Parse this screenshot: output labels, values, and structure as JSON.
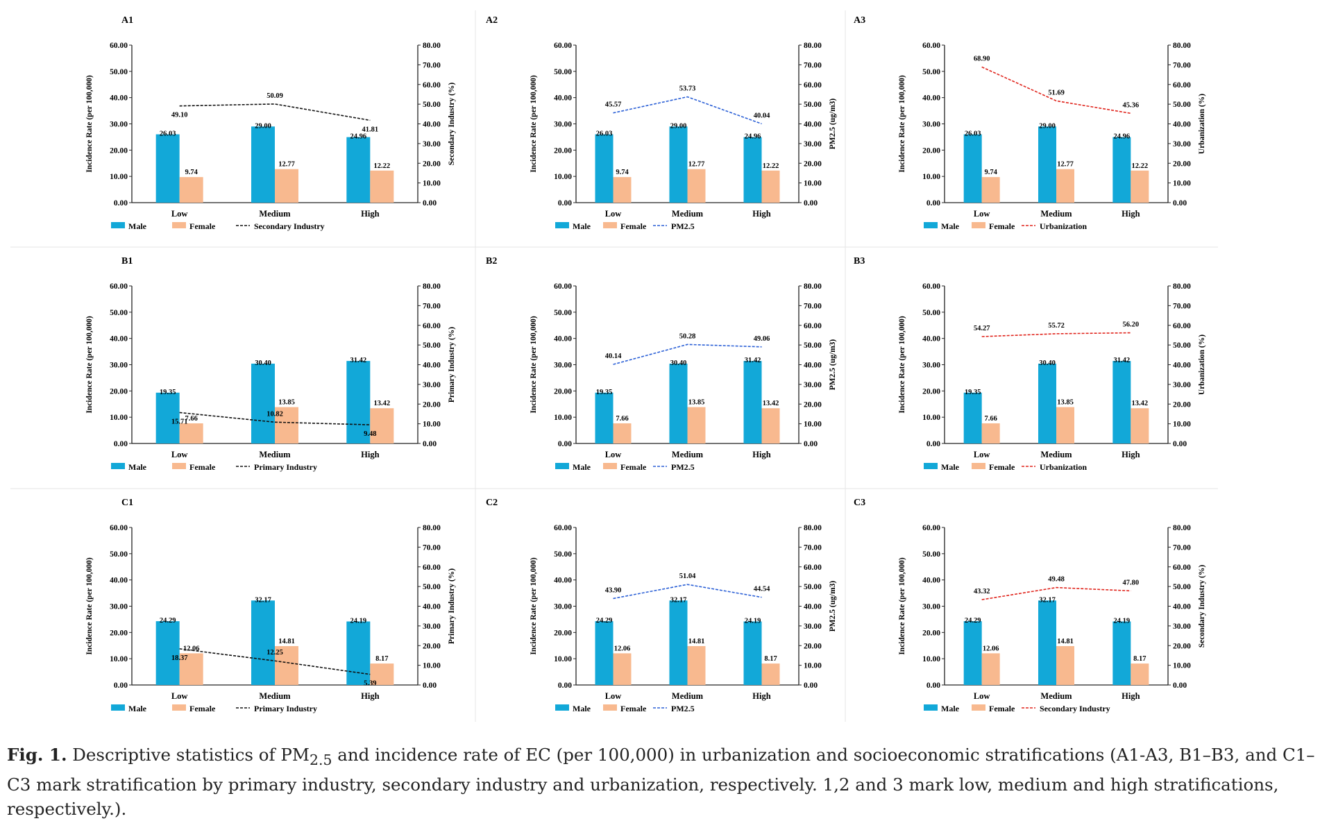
{
  "caption": {
    "label": "Fig. 1.",
    "text_before_sub": "Descriptive statistics of PM",
    "subscript": "2.5",
    "text_after_sub": " and incidence rate of EC (per 100,000) in urbanization and socioeconomic stratifications (A1-A3, B1–B3, and C1–C3 mark stratification by primary industry, secondary industry and urbanization, respectively. 1,2 and 3 mark low, medium and high stratifications, respectively.)."
  },
  "colors": {
    "male": "#12a8d8",
    "female": "#f8b98f",
    "line_black": "#111111",
    "line_blue": "#2a5fd6",
    "line_red": "#e0241c"
  },
  "chart_data": [
    {
      "id": "A1",
      "type": "bar",
      "panel_label": "A1",
      "categories": [
        "Low",
        "Medium",
        "High"
      ],
      "series": [
        {
          "name": "Male",
          "values": [
            26.03,
            29.0,
            24.96
          ],
          "labels": [
            "26.03",
            "29.00",
            "24.96"
          ]
        },
        {
          "name": "Female",
          "values": [
            9.74,
            12.77,
            12.22
          ],
          "labels": [
            "9.74",
            "12.77",
            "12.22"
          ]
        }
      ],
      "line": {
        "name": "Secondary Industry",
        "values": [
          49.1,
          50.09,
          41.81
        ],
        "labels": [
          "49.10",
          "50.09",
          "41.81"
        ],
        "color_key": "line_black"
      },
      "ylabel": "Incidence Rate (per 100,000)",
      "y2label": "Secondary Industry (%)",
      "ylim": [
        0,
        60
      ],
      "y2lim": [
        0,
        80
      ],
      "yticks": [
        "0.00",
        "10.00",
        "20.00",
        "30.00",
        "40.00",
        "50.00",
        "60.00"
      ],
      "y2ticks": [
        "0.00",
        "10.00",
        "20.00",
        "30.00",
        "40.00",
        "50.00",
        "60.00",
        "70.00",
        "80.00"
      ],
      "legend": [
        "Male",
        "Female",
        "Secondary Industry"
      ]
    },
    {
      "id": "A2",
      "type": "bar",
      "panel_label": "A2",
      "categories": [
        "Low",
        "Medium",
        "High"
      ],
      "series": [
        {
          "name": "Male",
          "values": [
            26.03,
            29.0,
            24.96
          ],
          "labels": [
            "26.03",
            "29.00",
            "24.96"
          ]
        },
        {
          "name": "Female",
          "values": [
            9.74,
            12.77,
            12.22
          ],
          "labels": [
            "9.74",
            "12.77",
            "12.22"
          ]
        }
      ],
      "line": {
        "name": "PM2.5",
        "values": [
          45.57,
          53.73,
          40.04
        ],
        "labels": [
          "45.57",
          "53.73",
          "40.04"
        ],
        "color_key": "line_blue"
      },
      "ylabel": "Incidence Rate (per 100,000)",
      "y2label": "PM2.5 (ug/m3)",
      "ylim": [
        0,
        60
      ],
      "y2lim": [
        0,
        80
      ],
      "yticks": [
        "0.00",
        "10.00",
        "20.00",
        "30.00",
        "40.00",
        "50.00",
        "60.00"
      ],
      "y2ticks": [
        "0.00",
        "10.00",
        "20.00",
        "30.00",
        "40.00",
        "50.00",
        "60.00",
        "70.00",
        "80.00"
      ],
      "legend": [
        "Male",
        "Female",
        "PM2.5"
      ]
    },
    {
      "id": "A3",
      "type": "bar",
      "panel_label": "A3",
      "categories": [
        "Low",
        "Medium",
        "High"
      ],
      "series": [
        {
          "name": "Male",
          "values": [
            26.03,
            29.0,
            24.96
          ],
          "labels": [
            "26.03",
            "29.00",
            "24.96"
          ]
        },
        {
          "name": "Female",
          "values": [
            9.74,
            12.77,
            12.22
          ],
          "labels": [
            "9.74",
            "12.77",
            "12.22"
          ]
        }
      ],
      "line": {
        "name": "Urbanization",
        "values": [
          68.9,
          51.69,
          45.36
        ],
        "labels": [
          "68.90",
          "51.69",
          "45.36"
        ],
        "color_key": "line_red"
      },
      "ylabel": "Incidence Rate (per 100,000)",
      "y2label": "Urbanization (%)",
      "ylim": [
        0,
        60
      ],
      "y2lim": [
        0,
        80
      ],
      "yticks": [
        "0.00",
        "10.00",
        "20.00",
        "30.00",
        "40.00",
        "50.00",
        "60.00"
      ],
      "y2ticks": [
        "0.00",
        "10.00",
        "20.00",
        "30.00",
        "40.00",
        "50.00",
        "60.00",
        "70.00",
        "80.00"
      ],
      "legend": [
        "Male",
        "Female",
        "Urbanization"
      ]
    },
    {
      "id": "B1",
      "type": "bar",
      "panel_label": "B1",
      "categories": [
        "Low",
        "Medium",
        "High"
      ],
      "series": [
        {
          "name": "Male",
          "values": [
            19.35,
            30.4,
            31.42
          ],
          "labels": [
            "19.35",
            "30.40",
            "31.42"
          ]
        },
        {
          "name": "Female",
          "values": [
            7.66,
            13.85,
            13.42
          ],
          "labels": [
            "7.66",
            "13.85",
            "13.42"
          ]
        }
      ],
      "line": {
        "name": "Primary Industry",
        "values": [
          15.71,
          10.82,
          9.48
        ],
        "labels": [
          "15.71",
          "10.82",
          "9.48"
        ],
        "color_key": "line_black"
      },
      "ylabel": "Incidence Rate (per 100,000)",
      "y2label": "Primary Industry (%)",
      "ylim": [
        0,
        60
      ],
      "y2lim": [
        0,
        80
      ],
      "yticks": [
        "0.00",
        "10.00",
        "20.00",
        "30.00",
        "40.00",
        "50.00",
        "60.00"
      ],
      "y2ticks": [
        "0.00",
        "10.00",
        "20.00",
        "30.00",
        "40.00",
        "50.00",
        "60.00",
        "70.00",
        "80.00"
      ],
      "legend": [
        "Male",
        "Female",
        "Primary Industry"
      ]
    },
    {
      "id": "B2",
      "type": "bar",
      "panel_label": "B2",
      "categories": [
        "Low",
        "Medium",
        "High"
      ],
      "series": [
        {
          "name": "Male",
          "values": [
            19.35,
            30.4,
            31.42
          ],
          "labels": [
            "19.35",
            "30.40",
            "31.42"
          ]
        },
        {
          "name": "Female",
          "values": [
            7.66,
            13.85,
            13.42
          ],
          "labels": [
            "7.66",
            "13.85",
            "13.42"
          ]
        }
      ],
      "line": {
        "name": "PM2.5",
        "values": [
          40.14,
          50.28,
          49.06
        ],
        "labels": [
          "40.14",
          "50.28",
          "49.06"
        ],
        "color_key": "line_blue"
      },
      "ylabel": "Incidence Rate (per 100,000)",
      "y2label": "PM2.5 (ug/m3)",
      "ylim": [
        0,
        60
      ],
      "y2lim": [
        0,
        80
      ],
      "yticks": [
        "0.00",
        "10.00",
        "20.00",
        "30.00",
        "40.00",
        "50.00",
        "60.00"
      ],
      "y2ticks": [
        "0.00",
        "10.00",
        "20.00",
        "30.00",
        "40.00",
        "50.00",
        "60.00",
        "70.00",
        "80.00"
      ],
      "legend": [
        "Male",
        "Female",
        "PM2.5"
      ]
    },
    {
      "id": "B3",
      "type": "bar",
      "panel_label": "B3",
      "categories": [
        "Low",
        "Medium",
        "High"
      ],
      "series": [
        {
          "name": "Male",
          "values": [
            19.35,
            30.4,
            31.42
          ],
          "labels": [
            "19.35",
            "30.40",
            "31.42"
          ]
        },
        {
          "name": "Female",
          "values": [
            7.66,
            13.85,
            13.42
          ],
          "labels": [
            "7.66",
            "13.85",
            "13.42"
          ]
        }
      ],
      "line": {
        "name": "Urbanization",
        "values": [
          54.27,
          55.72,
          56.2
        ],
        "labels": [
          "54.27",
          "55.72",
          "56.20"
        ],
        "color_key": "line_red"
      },
      "ylabel": "Incidence Rate (per 100,000)",
      "y2label": "Urbanization (%)",
      "ylim": [
        0,
        60
      ],
      "y2lim": [
        0,
        80
      ],
      "yticks": [
        "0.00",
        "10.00",
        "20.00",
        "30.00",
        "40.00",
        "50.00",
        "60.00"
      ],
      "y2ticks": [
        "0.00",
        "10.00",
        "20.00",
        "30.00",
        "40.00",
        "50.00",
        "60.00",
        "70.00",
        "80.00"
      ],
      "legend": [
        "Male",
        "Female",
        "Urbanization"
      ]
    },
    {
      "id": "C1",
      "type": "bar",
      "panel_label": "C1",
      "categories": [
        "Low",
        "Medium",
        "High"
      ],
      "series": [
        {
          "name": "Male",
          "values": [
            24.29,
            32.17,
            24.19
          ],
          "labels": [
            "24.29",
            "32.17",
            "24.19"
          ]
        },
        {
          "name": "Female",
          "values": [
            12.06,
            14.81,
            8.17
          ],
          "labels": [
            "12.06",
            "14.81",
            "8.17"
          ]
        }
      ],
      "line": {
        "name": "Primary Industry",
        "values": [
          18.37,
          12.25,
          5.39
        ],
        "labels": [
          "18.37",
          "12.25",
          "5.39"
        ],
        "color_key": "line_black"
      },
      "ylabel": "Incidence Rate (per 100,000)",
      "y2label": "Primary Industry (%)",
      "ylim": [
        0,
        60
      ],
      "y2lim": [
        0,
        80
      ],
      "yticks": [
        "0.00",
        "10.00",
        "20.00",
        "30.00",
        "40.00",
        "50.00",
        "60.00"
      ],
      "y2ticks": [
        "0.00",
        "10.00",
        "20.00",
        "30.00",
        "40.00",
        "50.00",
        "60.00",
        "70.00",
        "80.00"
      ],
      "legend": [
        "Male",
        "Female",
        "Primary Industry"
      ]
    },
    {
      "id": "C2",
      "type": "bar",
      "panel_label": "C2",
      "categories": [
        "Low",
        "Medium",
        "High"
      ],
      "series": [
        {
          "name": "Male",
          "values": [
            24.29,
            32.17,
            24.19
          ],
          "labels": [
            "24.29",
            "32.17",
            "24.19"
          ]
        },
        {
          "name": "Female",
          "values": [
            12.06,
            14.81,
            8.17
          ],
          "labels": [
            "12.06",
            "14.81",
            "8.17"
          ]
        }
      ],
      "line": {
        "name": "PM2.5",
        "values": [
          43.9,
          51.04,
          44.54
        ],
        "labels": [
          "43.90",
          "51.04",
          "44.54"
        ],
        "color_key": "line_blue"
      },
      "ylabel": "Incidence Rate (per 100,000)",
      "y2label": "PM2.5 (ug/m3)",
      "ylim": [
        0,
        60
      ],
      "y2lim": [
        0,
        80
      ],
      "yticks": [
        "0.00",
        "10.00",
        "20.00",
        "30.00",
        "40.00",
        "50.00",
        "60.00"
      ],
      "y2ticks": [
        "0.00",
        "10.00",
        "20.00",
        "30.00",
        "40.00",
        "50.00",
        "60.00",
        "70.00",
        "80.00"
      ],
      "legend": [
        "Male",
        "Female",
        "PM2.5"
      ]
    },
    {
      "id": "C3",
      "type": "bar",
      "panel_label": "C3",
      "categories": [
        "Low",
        "Medium",
        "High"
      ],
      "series": [
        {
          "name": "Male",
          "values": [
            24.29,
            32.17,
            24.19
          ],
          "labels": [
            "24.29",
            "32.17",
            "24.19"
          ]
        },
        {
          "name": "Female",
          "values": [
            12.06,
            14.81,
            8.17
          ],
          "labels": [
            "12.06",
            "14.81",
            "8.17"
          ]
        }
      ],
      "line": {
        "name": "Secondary Industry",
        "values": [
          43.32,
          49.48,
          47.8
        ],
        "labels": [
          "43.32",
          "49.48",
          "47.80"
        ],
        "color_key": "line_red"
      },
      "ylabel": "Incidence Rate (per 100,000)",
      "y2label": "Secondary Industry (%)",
      "ylim": [
        0,
        60
      ],
      "y2lim": [
        0,
        80
      ],
      "yticks": [
        "0.00",
        "10.00",
        "20.00",
        "30.00",
        "40.00",
        "50.00",
        "60.00"
      ],
      "y2ticks": [
        "0.00",
        "10.00",
        "20.00",
        "30.00",
        "40.00",
        "50.00",
        "60.00",
        "70.00",
        "80.00"
      ],
      "legend": [
        "Male",
        "Female",
        "Secondary Industry"
      ]
    }
  ]
}
